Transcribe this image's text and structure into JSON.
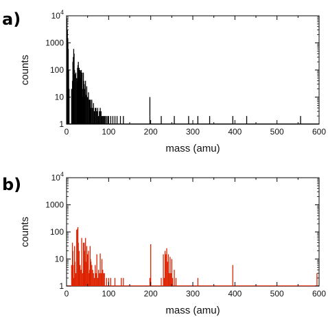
{
  "chart_data": [
    {
      "type": "bar",
      "panel_label": "a)",
      "xlabel": "mass (amu)",
      "ylabel": "counts",
      "xlim": [
        0,
        600
      ],
      "ylim": [
        1,
        10000
      ],
      "y_scale": "log",
      "color": "#000000",
      "x_ticks": [
        "0",
        "100",
        "200",
        "300",
        "400",
        "500",
        "600"
      ],
      "y_ticks": [
        "1",
        "10",
        "100",
        "1000",
        "10^4"
      ],
      "x": [
        1,
        2,
        3,
        4,
        5,
        6,
        12,
        13,
        14,
        15,
        16,
        17,
        18,
        19,
        20,
        22,
        24,
        25,
        26,
        27,
        28,
        29,
        30,
        31,
        32,
        33,
        34,
        35,
        36,
        37,
        38,
        39,
        40,
        41,
        42,
        43,
        44,
        45,
        46,
        48,
        50,
        52,
        54,
        55,
        56,
        57,
        58,
        60,
        62,
        64,
        66,
        68,
        70,
        71,
        72,
        74,
        76,
        78,
        80,
        82,
        84,
        86,
        88,
        90,
        92,
        95,
        98,
        100,
        105,
        110,
        115,
        120,
        128,
        135,
        198,
        225,
        256,
        290,
        312,
        340,
        395,
        428,
        556
      ],
      "values": [
        8000,
        3000,
        1500,
        600,
        100,
        20,
        20,
        8,
        40,
        200,
        300,
        600,
        400,
        100,
        70,
        80,
        50,
        40,
        120,
        150,
        200,
        100,
        120,
        30,
        100,
        90,
        50,
        100,
        40,
        80,
        10,
        20,
        80,
        40,
        30,
        10,
        20,
        40,
        12,
        25,
        10,
        15,
        8,
        8,
        6,
        8,
        4,
        8,
        4,
        6,
        3,
        4,
        4,
        3,
        3,
        4,
        2,
        3,
        4,
        3,
        2,
        2,
        2,
        2,
        2,
        2,
        2,
        2,
        2,
        2,
        2,
        2,
        2,
        2,
        10,
        2,
        2,
        2,
        2,
        2,
        2,
        2,
        2
      ]
    },
    {
      "type": "bar",
      "panel_label": "b)",
      "xlabel": "mass (amu)",
      "ylabel": "counts",
      "xlim": [
        0,
        600
      ],
      "ylim": [
        1,
        10000
      ],
      "y_scale": "log",
      "color": "#dd2200",
      "x_ticks": [
        "0",
        "100",
        "200",
        "300",
        "400",
        "500",
        "600"
      ],
      "y_ticks": [
        "1",
        "10",
        "100",
        "1000",
        "10^4"
      ],
      "x": [
        12,
        14,
        15,
        16,
        18,
        19,
        20,
        22,
        24,
        26,
        27,
        28,
        29,
        30,
        31,
        32,
        34,
        36,
        38,
        40,
        41,
        42,
        43,
        44,
        45,
        46,
        48,
        50,
        52,
        54,
        55,
        56,
        57,
        58,
        60,
        62,
        64,
        66,
        68,
        70,
        72,
        74,
        76,
        78,
        80,
        82,
        84,
        86,
        88,
        90,
        95,
        100,
        105,
        115,
        130,
        135,
        198,
        200,
        225,
        230,
        232,
        234,
        236,
        238,
        240,
        242,
        244,
        246,
        248,
        250,
        252,
        256,
        260,
        312,
        395,
        595
      ],
      "values": [
        6,
        40,
        20,
        6,
        2,
        30,
        8,
        3,
        120,
        130,
        150,
        40,
        8,
        20,
        3,
        6,
        4,
        60,
        3,
        40,
        20,
        40,
        8,
        20,
        60,
        8,
        30,
        15,
        20,
        3,
        4,
        30,
        10,
        8,
        6,
        4,
        3,
        2,
        6,
        3,
        15,
        2,
        4,
        3,
        16,
        3,
        10,
        4,
        3,
        3,
        2,
        2,
        2,
        2,
        2,
        2,
        2,
        35,
        2,
        15,
        2,
        20,
        15,
        25,
        8,
        15,
        3,
        12,
        3,
        10,
        2,
        4,
        2,
        2,
        6,
        3
      ]
    }
  ]
}
